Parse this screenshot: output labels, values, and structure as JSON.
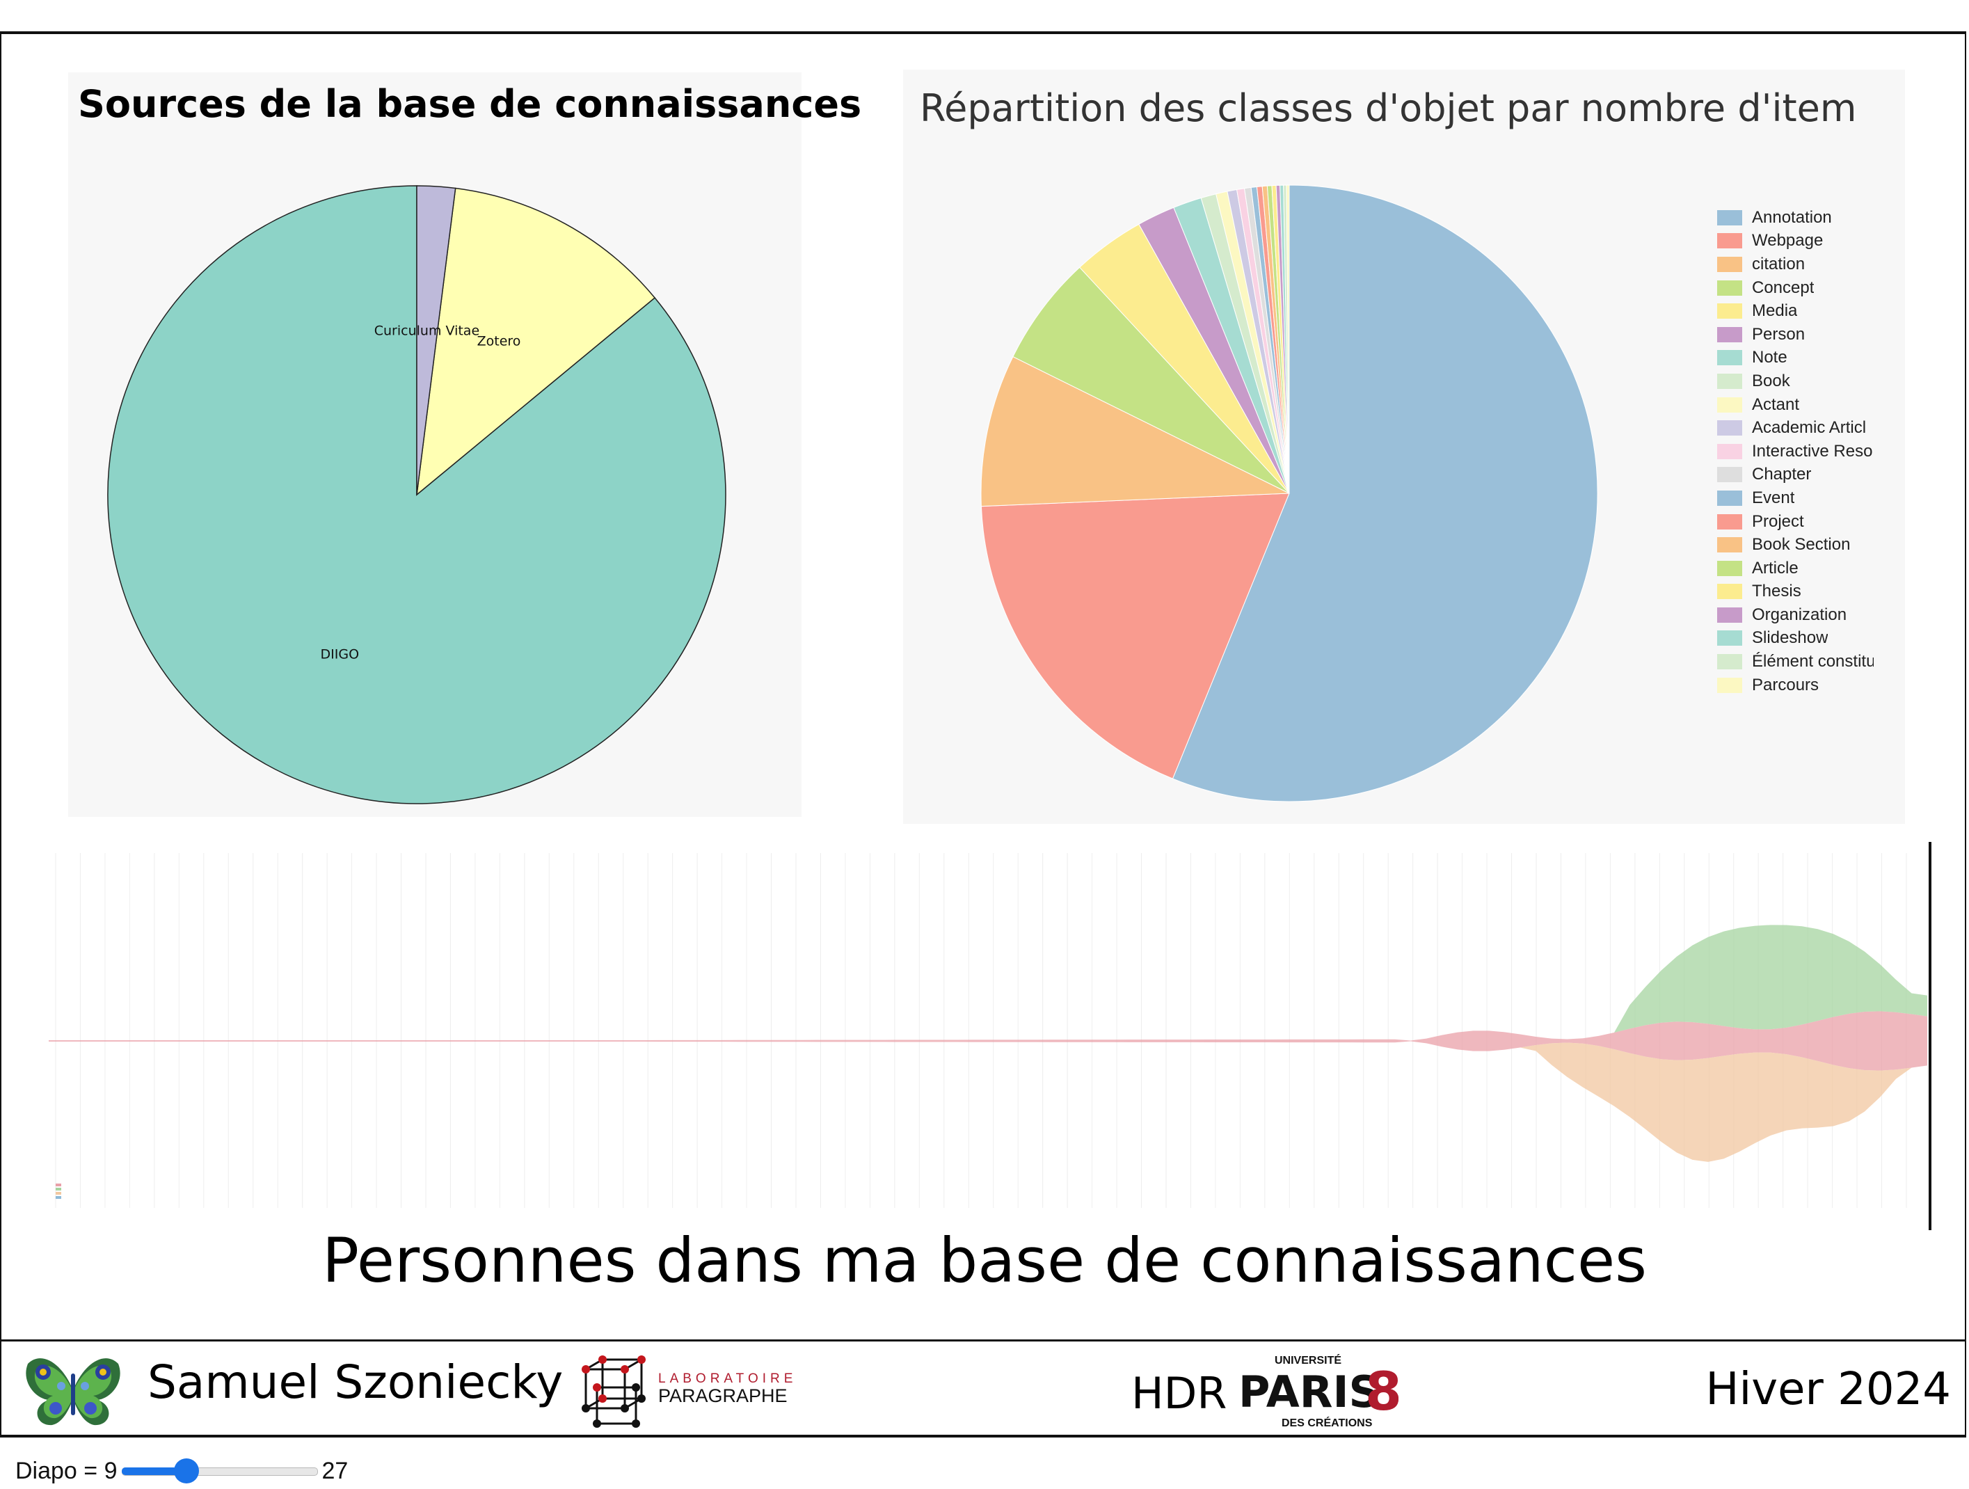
{
  "charts": {
    "sources": {
      "title": "Sources de la base de connaissances"
    },
    "classes": {
      "title": "Répartition des classes d'objet par nombre d'item"
    },
    "stream": {
      "caption": "Personnes dans ma base de connaissances"
    }
  },
  "chart_data": [
    {
      "type": "pie",
      "title": "Sources de la base de connaissances",
      "labels": [
        "DIIGO",
        "Zotero",
        "Curiculum Vitae"
      ],
      "values": [
        86,
        12,
        2
      ],
      "colors": [
        "#8dd3c7",
        "#ffffb3",
        "#bebada"
      ],
      "legend": "none"
    },
    {
      "type": "pie",
      "title": "Répartition des classes d'objet par nombre d'item",
      "labels": [
        "Annotation",
        "Webpage",
        "citation",
        "Concept",
        "Media",
        "Person",
        "Note",
        "Book",
        "Actant",
        "Academic Article",
        "Interactive Resource",
        "Chapter",
        "Event",
        "Project",
        "Book Section",
        "Article",
        "Thesis",
        "Organization",
        "Slideshow",
        "Élément constitutif",
        "Parcours"
      ],
      "legend_labels": [
        "Annotation",
        "Webpage",
        "citation",
        "Concept",
        "Media",
        "Person",
        "Note",
        "Book",
        "Actant",
        "Academic Articl",
        "Interactive Reso",
        "Chapter",
        "Event",
        "Project",
        "Book Section",
        "Article",
        "Thesis",
        "Organization",
        "Slideshow",
        "Élément constitu",
        "Parcours"
      ],
      "values": [
        56.3,
        18.2,
        8.0,
        5.8,
        3.8,
        2.0,
        1.5,
        0.8,
        0.6,
        0.5,
        0.4,
        0.35,
        0.3,
        0.28,
        0.26,
        0.24,
        0.22,
        0.2,
        0.18,
        0.16,
        0.14
      ],
      "colors": [
        "#9abfd9",
        "#f99b8f",
        "#f9c285",
        "#c4e285",
        "#fcec8f",
        "#c79bc9",
        "#a6dcd2",
        "#d5ebcd",
        "#fcf8c2",
        "#cdcae4",
        "#f9d2e3",
        "#dedede",
        "#9abfd9",
        "#f99b8f",
        "#f9c285",
        "#c4e285",
        "#fcec8f",
        "#c79bc9",
        "#a6dcd2",
        "#d5ebcd",
        "#fcf8c2"
      ],
      "legend": "right"
    },
    {
      "type": "area",
      "title": "Personnes dans ma base de connaissances",
      "series_colors": [
        "#e9a0a8",
        "#a6d4a0",
        "#f2c7a0",
        "#8fbad8"
      ],
      "x_ticks": 76
    }
  ],
  "footer": {
    "author": "Samuel Szoniecky",
    "lab_line1": "LABORATOIRE",
    "lab_line2": "PARAGRAPHE",
    "hdr": "HDR",
    "univ_top": "UNIVERSITÉ",
    "univ_name": "PARIS",
    "univ_num": "8",
    "univ_bottom": "DES CRÉATIONS",
    "season": "Hiver 2024"
  },
  "nav": {
    "label": "Diapo = 9",
    "current": 9,
    "max": 27,
    "max_label": "27",
    "fill_fraction": 0.33
  }
}
